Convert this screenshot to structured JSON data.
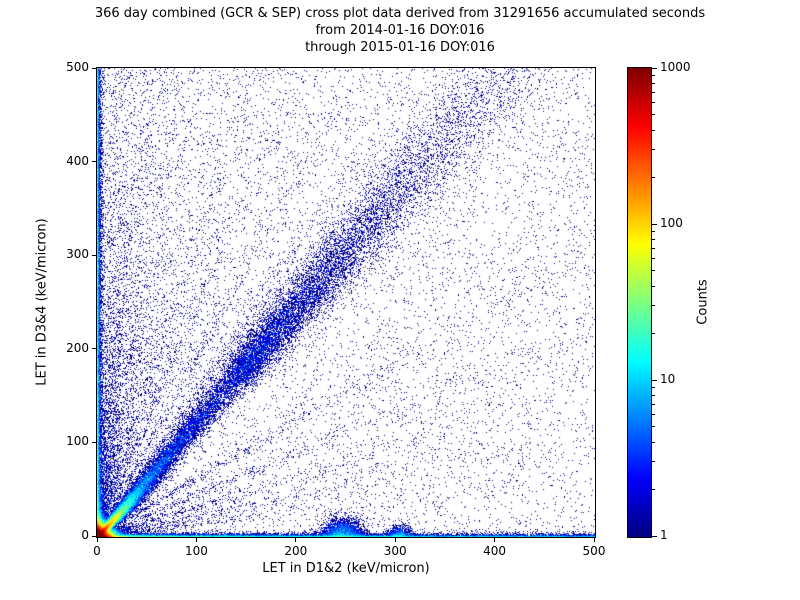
{
  "chart_data": {
    "type": "scatter",
    "subtype": "density-2d-histogram",
    "title_lines": [
      "366 day combined (GCR & SEP) cross plot data derived from 31291656 accumulated seconds",
      "from 2014-01-16 DOY:016",
      "through 2015-01-16 DOY:016"
    ],
    "xlabel": "LET in D1&2 (keV/micron)",
    "ylabel": "LET in D3&4 (keV/micron)",
    "xlim": [
      0,
      500
    ],
    "ylim": [
      0,
      500
    ],
    "xticks": [
      0,
      100,
      200,
      300,
      400,
      500
    ],
    "yticks": [
      0,
      100,
      200,
      300,
      400,
      500
    ],
    "grid": false,
    "legend": false,
    "colorbar": {
      "label": "Counts",
      "scale": "log",
      "vmin": 1,
      "vmax": 1000,
      "ticks": [
        1,
        10,
        100,
        1000
      ],
      "colormap": "jet",
      "position": "right"
    },
    "density_components": [
      {
        "name": "origin-hotspot",
        "type": "biexp",
        "n": 110000,
        "mean_x": 3.5,
        "mean_y": 3.5
      },
      {
        "name": "origin-diagonal-streak",
        "type": "diag",
        "n": 26000,
        "t0": 0,
        "mean_t": 13,
        "slope": 1.05,
        "spread0": 0.7,
        "spread_k": 0.08
      },
      {
        "name": "main-diagonal-band",
        "type": "diag",
        "n": 15000,
        "t0": 0,
        "mean_t": 115,
        "slope": 1.22,
        "spread0": 1.5,
        "spread_k": 0.05
      },
      {
        "name": "diagonal-band-upper",
        "type": "diag",
        "n": 7000,
        "t0": 140,
        "mean_t": 110,
        "slope": 1.22,
        "spread0": 2.5,
        "spread_k": 0.05
      },
      {
        "name": "left-edge-column",
        "type": "column",
        "n": 15000,
        "mean_x": 1.2,
        "y_pow": 1.35,
        "ymax": 500
      },
      {
        "name": "bottom-edge-row",
        "type": "row",
        "n": 13000,
        "mean_y": 1.2,
        "x_pow": 1.8,
        "xmax": 500
      },
      {
        "name": "bottom-blob-245",
        "type": "blob",
        "n": 2400,
        "cx": 246,
        "sx": 10,
        "sy": 9
      },
      {
        "name": "bottom-blob-305",
        "type": "blob",
        "n": 700,
        "cx": 304,
        "sx": 6,
        "sy": 6
      },
      {
        "name": "steep-ray-1",
        "type": "ray_steep",
        "n": 900,
        "slope": 25,
        "mean_y": 260
      },
      {
        "name": "steep-ray-2",
        "type": "ray_steep",
        "n": 800,
        "slope": 15,
        "mean_y": 240
      },
      {
        "name": "steep-ray-3",
        "type": "ray_steep",
        "n": 850,
        "slope": 10,
        "mean_y": 250
      },
      {
        "name": "steep-ray-4",
        "type": "ray_steep",
        "n": 750,
        "slope": 7.5,
        "mean_y": 230
      },
      {
        "name": "steep-ray-5",
        "type": "ray_steep",
        "n": 800,
        "slope": 5.5,
        "mean_y": 240
      },
      {
        "name": "steep-ray-6",
        "type": "ray_steep",
        "n": 700,
        "slope": 4.2,
        "mean_y": 220
      },
      {
        "name": "steep-ray-7",
        "type": "ray_steep",
        "n": 800,
        "slope": 3.2,
        "mean_y": 250
      },
      {
        "name": "steep-ray-8",
        "type": "ray_steep",
        "n": 700,
        "slope": 2.5,
        "mean_y": 230
      },
      {
        "name": "steep-ray-9",
        "type": "ray_steep",
        "n": 650,
        "slope": 1.9,
        "mean_y": 210
      },
      {
        "name": "steep-ray-10",
        "type": "ray_steep",
        "n": 650,
        "slope": 1.55,
        "mean_y": 200
      },
      {
        "name": "shallow-ray-1",
        "type": "ray_shallow",
        "n": 550,
        "slope": 0.62,
        "mean_x": 180
      },
      {
        "name": "shallow-ray-2",
        "type": "ray_shallow",
        "n": 500,
        "slope": 0.45,
        "mean_x": 170
      },
      {
        "name": "shallow-ray-3",
        "type": "ray_shallow",
        "n": 450,
        "slope": 0.32,
        "mean_x": 160
      },
      {
        "name": "shallow-ray-4",
        "type": "ray_shallow",
        "n": 400,
        "slope": 0.22,
        "mean_x": 150
      },
      {
        "name": "shallow-ray-5",
        "type": "ray_shallow",
        "n": 350,
        "slope": 0.14,
        "mean_x": 140
      },
      {
        "name": "uniform-background",
        "type": "uniform",
        "n": 5200
      },
      {
        "name": "left-biased-background",
        "type": "uniform_biased",
        "n": 4200,
        "x_pow": 1.9
      }
    ]
  }
}
